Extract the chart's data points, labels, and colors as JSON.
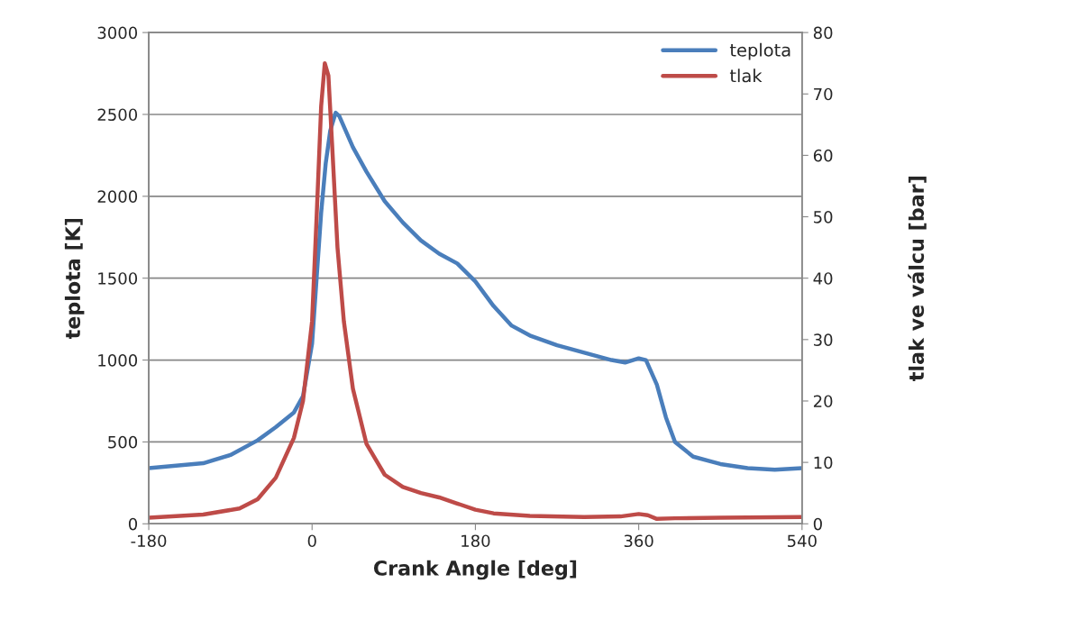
{
  "chart_data": {
    "type": "line",
    "xlabel": "Crank Angle [deg]",
    "ylabel": "teplota [K]",
    "y2label": "tlak ve válcu [bar]",
    "xlim": [
      -180,
      540
    ],
    "xticks": [
      -180,
      0,
      180,
      360,
      540
    ],
    "ylim": [
      0,
      3000
    ],
    "yticks": [
      0,
      500,
      1000,
      1500,
      2000,
      2500,
      3000
    ],
    "y2lim": [
      0,
      80
    ],
    "y2ticks": [
      0,
      10,
      20,
      30,
      40,
      50,
      60,
      70,
      80
    ],
    "grid": "y",
    "legend": "top right",
    "marker": "none",
    "line_style": "solid",
    "series": [
      {
        "name": "teplota",
        "color": "#4a7ebb",
        "axis": "y",
        "x": [
          -180,
          -120,
          -90,
          -60,
          -40,
          -20,
          -10,
          0,
          5,
          10,
          15,
          20,
          26,
          30,
          45,
          60,
          80,
          100,
          120,
          140,
          160,
          180,
          200,
          220,
          240,
          270,
          300,
          330,
          345,
          360,
          368,
          380,
          390,
          400,
          420,
          450,
          480,
          510,
          540
        ],
        "values": [
          340,
          370,
          420,
          510,
          590,
          680,
          780,
          1100,
          1500,
          1900,
          2200,
          2400,
          2510,
          2490,
          2300,
          2150,
          1970,
          1840,
          1730,
          1650,
          1590,
          1480,
          1330,
          1210,
          1150,
          1090,
          1045,
          1000,
          985,
          1010,
          1000,
          850,
          650,
          500,
          410,
          365,
          340,
          330,
          340
        ]
      },
      {
        "name": "tlak",
        "color": "#be4b48",
        "axis": "y2",
        "x": [
          -180,
          -120,
          -80,
          -60,
          -40,
          -20,
          -10,
          0,
          5,
          10,
          14,
          18,
          22,
          28,
          35,
          45,
          60,
          80,
          100,
          120,
          140,
          160,
          180,
          200,
          240,
          300,
          340,
          360,
          370,
          380,
          400,
          450,
          540
        ],
        "values": [
          1.0,
          1.5,
          2.5,
          4,
          7.5,
          14,
          20,
          33,
          50,
          68,
          75,
          73,
          62,
          45,
          33,
          22,
          13,
          8,
          6,
          5,
          4.3,
          3.3,
          2.3,
          1.7,
          1.3,
          1.1,
          1.2,
          1.6,
          1.4,
          0.8,
          0.9,
          1.0,
          1.1
        ]
      }
    ]
  }
}
